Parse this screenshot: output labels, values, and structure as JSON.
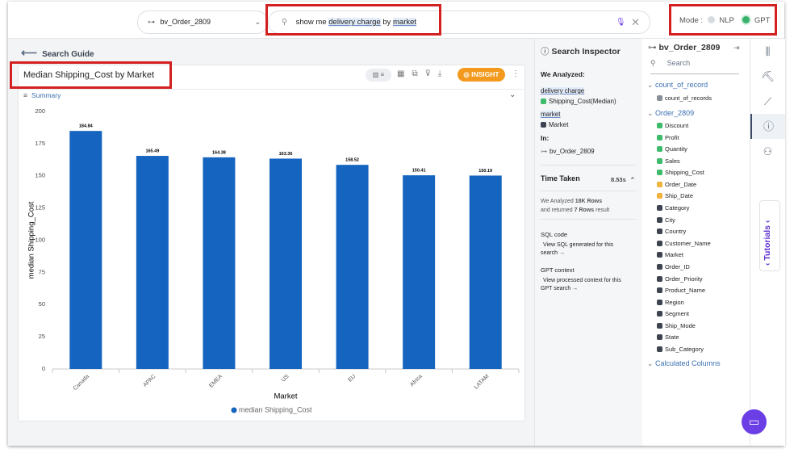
{
  "topbar": {
    "dataset": "bv_Order_2809",
    "query": {
      "prefix": "show me",
      "term1": "delivery charge",
      "joiner": "by",
      "term2": "market"
    },
    "mode_label": "Mode :",
    "mode_nlp": "NLP",
    "mode_gpt": "GPT"
  },
  "search_guide": "Search Guide",
  "card": {
    "title": "Median Shipping_Cost by Market",
    "insight": "INSIGHT",
    "summary": "Summary"
  },
  "chart": {
    "type": "bar",
    "categories": [
      "Canada",
      "APAC",
      "EMEA",
      "US",
      "EU",
      "Africa",
      "LATAM"
    ],
    "series": [
      {
        "name": "median Shipping_Cost",
        "color": "#1565c0",
        "values": [
          184.84,
          165.49,
          164.38,
          163.36,
          158.52,
          150.41,
          150.19
        ]
      }
    ],
    "ylim": [
      0,
      200
    ],
    "yticks": [
      0,
      25,
      50,
      75,
      100,
      125,
      150,
      175,
      200
    ],
    "ylabel": "median Shipping_Cost",
    "xlabel": "Market",
    "grid": false
  },
  "inspector": {
    "title": "Search Inspector",
    "analyzed": "We Analyzed:",
    "term1": "delivery charge",
    "term1_column": "Shipping_Cost(Median)",
    "term2": "market",
    "term2_column": "Market",
    "in_label": "In:",
    "dataset": "bv_Order_2809",
    "time_label": "Time Taken",
    "time_value": "8.53s",
    "rows": {
      "prefix": "We Analyzed",
      "analyzed": "18K Rows",
      "middle": "and returned",
      "returned": "7 Rows",
      "suffix": "result"
    },
    "sql_title": "SQL code",
    "sql_link": "View SQL generated for this search →",
    "gpt_title": "GPT context",
    "gpt_link": "View processed context for this GPT search →"
  },
  "columns_panel": {
    "dataset": "bv_Order_2809",
    "search": "Search",
    "group1": "count_of_record",
    "group1_items": [
      "count_of_records"
    ],
    "group2": "Order_2809",
    "measures": [
      "Discount",
      "Profit",
      "Quantity",
      "Sales",
      "Shipping_Cost"
    ],
    "dates": [
      "Order_Date",
      "Ship_Date"
    ],
    "dimensions": [
      "Category",
      "City",
      "Country",
      "Customer_Name",
      "Market",
      "Order_ID",
      "Order_Priority",
      "Product_Name",
      "Region",
      "Segment",
      "Ship_Mode",
      "State",
      "Sub_Category"
    ],
    "group3": "Calculated Columns"
  },
  "tutorials": "Tutorials"
}
